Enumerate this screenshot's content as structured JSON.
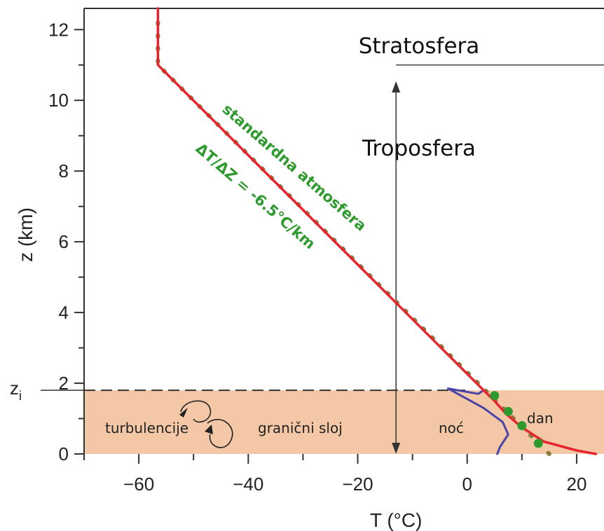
{
  "chart_data": {
    "type": "line",
    "xlabel": "T (°C)",
    "ylabel": "z (km)",
    "xlim": [
      -70,
      25
    ],
    "ylim": [
      0,
      12.6
    ],
    "x_ticks": [
      -60,
      -40,
      -20,
      0,
      20
    ],
    "y_ticks": [
      0,
      2,
      4,
      6,
      8,
      10,
      12
    ],
    "x_tick_labels": [
      "−60",
      "−40",
      "−20",
      "0",
      "20"
    ],
    "y_tick_labels": [
      "0",
      "2",
      "4",
      "6",
      "8",
      "10",
      "12"
    ],
    "zi_label": "z",
    "zi_subscript": "i",
    "zi_value": 1.8,
    "series": [
      {
        "name": "dan",
        "color": "#e8242c",
        "points": [
          [
            23.5,
            0.0
          ],
          [
            20,
            0.1
          ],
          [
            14,
            0.35
          ],
          [
            10,
            0.75
          ],
          [
            7,
            1.15
          ],
          [
            5,
            1.5
          ],
          [
            3,
            1.8
          ],
          [
            -56.5,
            11.0
          ],
          [
            -56.5,
            12.6
          ]
        ]
      },
      {
        "name": "noć",
        "color": "#4a44a8",
        "points": [
          [
            5.5,
            0.0
          ],
          [
            6,
            0.2
          ],
          [
            7.5,
            0.55
          ],
          [
            6.5,
            0.9
          ],
          [
            3,
            1.3
          ],
          [
            -3.5,
            1.85
          ],
          [
            2,
            1.7
          ],
          [
            3,
            1.8
          ],
          [
            -56.5,
            11.0
          ],
          [
            -56.5,
            12.6
          ]
        ]
      },
      {
        "name": "standardna atmosfera",
        "color": "#7a6a3a",
        "lapse_rate": -6.5,
        "points": [
          [
            15,
            0.0
          ],
          [
            2,
            2.0
          ],
          [
            -56.5,
            11.0
          ],
          [
            -56.5,
            12.5
          ]
        ]
      }
    ],
    "green_points": [
      [
        5,
        1.65
      ],
      [
        7.5,
        1.2
      ],
      [
        10,
        0.8
      ],
      [
        13,
        0.3
      ]
    ],
    "annotations": {
      "stratosphere": "Stratosfera",
      "troposphere": "Troposfera",
      "standard_atmosphere": "standardna atmosfera",
      "lapse_rate": "ΔT/ΔZ = -6.5°C/km",
      "boundary_layer": "granični sloj",
      "turbulence": "turbulencije",
      "night": "noć",
      "day": "dan"
    },
    "colors": {
      "boundary_layer_fill": "#f4c8a6",
      "green": "#2e9a2e",
      "day": "#e8242c",
      "night": "#4a44a8"
    }
  }
}
